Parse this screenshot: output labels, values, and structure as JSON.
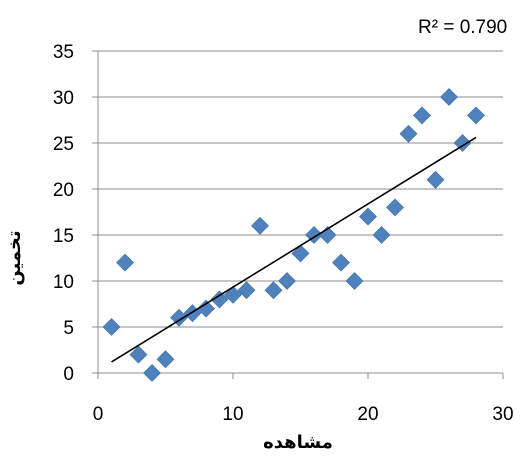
{
  "chart_data": {
    "type": "scatter",
    "title": "",
    "xlabel": "مشاهده",
    "ylabel": "تخمین",
    "xlim": [
      0,
      30
    ],
    "ylim": [
      0,
      35
    ],
    "x_ticks": [
      0,
      10,
      20,
      30
    ],
    "y_ticks": [
      0,
      5,
      10,
      15,
      20,
      25,
      30,
      35
    ],
    "grid": "horizontal",
    "legend": "none",
    "marker": "diamond",
    "marker_color": "#4F81BD",
    "points": [
      {
        "x": 1,
        "y": 5
      },
      {
        "x": 2,
        "y": 12
      },
      {
        "x": 3,
        "y": 2
      },
      {
        "x": 4,
        "y": 0
      },
      {
        "x": 5,
        "y": 1.5
      },
      {
        "x": 6,
        "y": 6
      },
      {
        "x": 7,
        "y": 6.5
      },
      {
        "x": 8,
        "y": 7
      },
      {
        "x": 9,
        "y": 8
      },
      {
        "x": 10,
        "y": 8.5
      },
      {
        "x": 11,
        "y": 9
      },
      {
        "x": 12,
        "y": 16
      },
      {
        "x": 13,
        "y": 9
      },
      {
        "x": 14,
        "y": 10
      },
      {
        "x": 15,
        "y": 13
      },
      {
        "x": 16,
        "y": 15
      },
      {
        "x": 17,
        "y": 15
      },
      {
        "x": 18,
        "y": 12
      },
      {
        "x": 19,
        "y": 10
      },
      {
        "x": 20,
        "y": 17
      },
      {
        "x": 21,
        "y": 15
      },
      {
        "x": 22,
        "y": 18
      },
      {
        "x": 23,
        "y": 26
      },
      {
        "x": 24,
        "y": 28
      },
      {
        "x": 25,
        "y": 21
      },
      {
        "x": 26,
        "y": 30
      },
      {
        "x": 27,
        "y": 25
      },
      {
        "x": 28,
        "y": 28
      }
    ],
    "trendline": {
      "type": "linear",
      "x_start": 1,
      "y_start": 1.2,
      "x_end": 28,
      "y_end": 25.6,
      "color": "#000000",
      "r_squared_label": "R² = 0.790"
    }
  }
}
